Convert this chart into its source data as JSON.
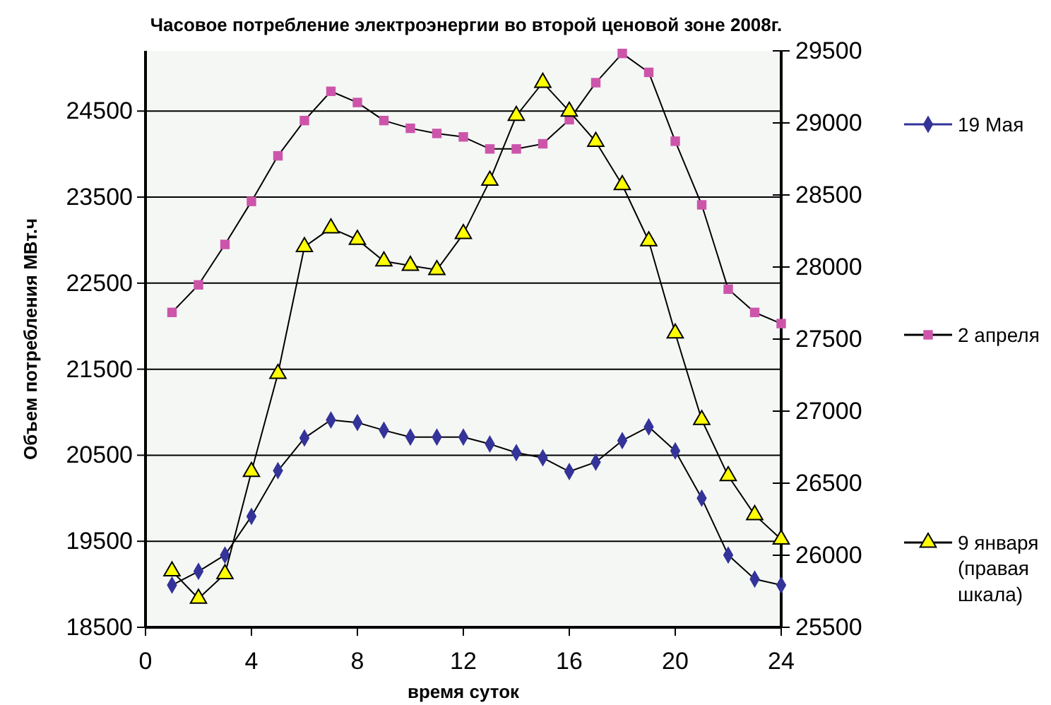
{
  "chart_data": {
    "type": "line",
    "title": "Часовое потребление электроэнергии во второй ценовой зоне 2008г.",
    "xlabel": "время суток",
    "ylabel": "Объем потребления МВт.ч",
    "x": [
      1,
      2,
      3,
      4,
      5,
      6,
      7,
      8,
      9,
      10,
      11,
      12,
      13,
      14,
      15,
      16,
      17,
      18,
      19,
      20,
      21,
      22,
      23,
      24
    ],
    "xlim": [
      0,
      24
    ],
    "xticks": [
      0,
      4,
      8,
      12,
      16,
      20,
      24
    ],
    "ylim": [
      18500,
      25200
    ],
    "yticks": [
      18500,
      19500,
      20500,
      21500,
      22500,
      23500,
      24500
    ],
    "y2lim": [
      25500,
      29500
    ],
    "y2ticks": [
      25500,
      26000,
      26500,
      27000,
      27500,
      28000,
      28500,
      29000,
      29500
    ],
    "grid": "y",
    "legend": "right",
    "series": [
      {
        "name": "19 Мая",
        "color": "#333399",
        "marker": "diamond",
        "values": [
          18990,
          19150,
          19340,
          19790,
          20320,
          20700,
          20910,
          20880,
          20790,
          20710,
          20710,
          20710,
          20630,
          20530,
          20470,
          20310,
          20420,
          20670,
          20830,
          20550,
          20000,
          19340,
          19060,
          18990
        ]
      },
      {
        "name": "2 апреля",
        "color": "#cc55aa",
        "marker": "square",
        "values": [
          22160,
          22480,
          22950,
          23450,
          23980,
          24390,
          24730,
          24600,
          24390,
          24300,
          24240,
          24200,
          24060,
          24060,
          24120,
          24400,
          24830,
          25170,
          24950,
          24150,
          23410,
          22430,
          22160,
          22030
        ]
      },
      {
        "name": "9 января (правая шкала)",
        "color": "#ffff00",
        "marker": "triangle",
        "axis": "y2",
        "values": [
          25890,
          25700,
          25870,
          26580,
          27260,
          28140,
          28270,
          28190,
          28040,
          28010,
          27980,
          28230,
          28600,
          29050,
          29280,
          29080,
          28870,
          28570,
          28180,
          27540,
          26940,
          26550,
          26280,
          26110
        ]
      }
    ]
  }
}
